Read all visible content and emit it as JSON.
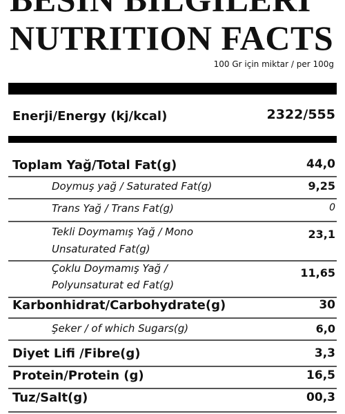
{
  "header": {
    "title_tr": "BESİN BİLGİLERİ",
    "title": "NUTRITION FACTS",
    "subtitle": "100 Gr için miktar / per 100g"
  },
  "energy": {
    "label": "Enerji/Energy (kj/kcal)",
    "value": "2322/555"
  },
  "table": {
    "rows": [
      [
        "Toplam Yağ/Total Fat(g)",
        "44,0"
      ],
      [
        "Doymuş yağ / Saturated Fat(g)",
        "9,25"
      ],
      [
        "Trans Yağ / Trans Fat(g)",
        "0"
      ],
      [
        "Tekli Doymamış Yağ / Mono",
        "Unsaturated Fat(g)",
        "23,1"
      ],
      [
        "Çoklu Doymamış Yağ /",
        "Polyunsaturat ed Fat(g)",
        "11,65"
      ],
      [
        "Karbonhidrat/Carbohydrate(g)",
        "30"
      ],
      [
        "Şeker / of which Sugars(g)",
        "6,0"
      ],
      [
        "Diyet Lifi /Fibre(g)",
        "3,3"
      ],
      [
        "Protein/Protein (g)",
        "16,5"
      ],
      [
        "Tuz/Salt(g)",
        "00,3"
      ]
    ]
  }
}
